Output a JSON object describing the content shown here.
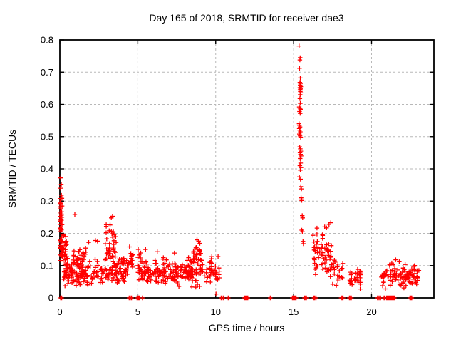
{
  "chart_data": {
    "type": "scatter",
    "title": "Day 165 of 2018, SRMTID for receiver dae3",
    "xlabel": "GPS time / hours",
    "ylabel": "SRMTID / TECUs",
    "xlim": [
      0,
      24
    ],
    "ylim": [
      0,
      0.8
    ],
    "grid": true,
    "legend_position": "none",
    "xticks": [
      {
        "value": 0,
        "label": "0"
      },
      {
        "value": 5,
        "label": "5"
      },
      {
        "value": 10,
        "label": "10"
      },
      {
        "value": 15,
        "label": "15"
      },
      {
        "value": 20,
        "label": "20"
      }
    ],
    "yticks": [
      {
        "value": 0,
        "label": "0"
      },
      {
        "value": 0.1,
        "label": "0.1"
      },
      {
        "value": 0.2,
        "label": "0.2"
      },
      {
        "value": 0.3,
        "label": "0.3"
      },
      {
        "value": 0.4,
        "label": "0.4"
      },
      {
        "value": 0.5,
        "label": "0.5"
      },
      {
        "value": 0.6,
        "label": "0.6"
      },
      {
        "value": 0.7,
        "label": "0.7"
      },
      {
        "value": 0.8,
        "label": "0.8"
      }
    ],
    "marker": {
      "shape": "plus",
      "half": 3.2,
      "stroke": 1.3
    },
    "colors": {
      "marker": "#ff0000",
      "grid": "#b8b8b8",
      "axis": "#000000",
      "background": "#ffffff",
      "text": "#000000"
    },
    "clusters": [
      {
        "name": "left-spike-core",
        "x": [
          0.0,
          0.14
        ],
        "y_mean": 0.24,
        "y_sd": 0.04,
        "y_clip": [
          0.16,
          0.32
        ],
        "n": 38
      },
      {
        "name": "left-spike-fan",
        "x": [
          0.02,
          0.5
        ],
        "y_mean": 0.15,
        "y_sd": 0.028,
        "y_clip": [
          0.095,
          0.21
        ],
        "n": 40
      },
      {
        "name": "band-0-4",
        "x": [
          0.25,
          4.35
        ],
        "y_mean": 0.08,
        "y_sd": 0.021,
        "y_clip": [
          0.035,
          0.14
        ],
        "n": 215
      },
      {
        "name": "bump-1h",
        "x": [
          0.85,
          1.75
        ],
        "y_mean": 0.125,
        "y_sd": 0.018,
        "y_clip": [
          0.1,
          0.163
        ],
        "n": 26
      },
      {
        "name": "column-3h",
        "x": [
          2.9,
          3.62
        ],
        "y_mean": 0.165,
        "y_sd": 0.038,
        "y_clip": [
          0.105,
          0.248
        ],
        "n": 38
      },
      {
        "name": "cluster-4.5h",
        "x": [
          4.33,
          4.72
        ],
        "y_mean": 0.11,
        "y_sd": 0.03,
        "y_clip": [
          0.05,
          0.15
        ],
        "n": 14
      },
      {
        "name": "band-5-10",
        "x": [
          4.98,
          10.28
        ],
        "y_mean": 0.078,
        "y_sd": 0.02,
        "y_clip": [
          0.03,
          0.132
        ],
        "n": 240
      },
      {
        "name": "bump-8.8h",
        "x": [
          8.55,
          9.1
        ],
        "y_mean": 0.132,
        "y_sd": 0.018,
        "y_clip": [
          0.108,
          0.175
        ],
        "n": 26
      },
      {
        "name": "column-5h",
        "x": [
          5.0,
          5.2
        ],
        "y_mean": 0.125,
        "y_sd": 0.02,
        "y_clip": [
          0.1,
          0.152
        ],
        "n": 7
      },
      {
        "name": "cluster-17h",
        "x": [
          16.27,
          17.45
        ],
        "y_mean": 0.13,
        "y_sd": 0.033,
        "y_clip": [
          0.07,
          0.225
        ],
        "n": 60
      },
      {
        "name": "tail-17.5-18h",
        "x": [
          17.35,
          18.2
        ],
        "y_mean": 0.07,
        "y_sd": 0.028,
        "y_clip": [
          0.03,
          0.135
        ],
        "n": 26
      },
      {
        "name": "cluster-19h",
        "x": [
          18.6,
          19.3
        ],
        "y_mean": 0.06,
        "y_sd": 0.02,
        "y_clip": [
          0.02,
          0.098
        ],
        "n": 32
      },
      {
        "name": "band-21-23h",
        "x": [
          20.62,
          23.05
        ],
        "y_mean": 0.067,
        "y_sd": 0.019,
        "y_clip": [
          0.027,
          0.112
        ],
        "n": 105
      }
    ],
    "points": [
      [
        0.05,
        0.372
      ],
      [
        0.09,
        0.352
      ],
      [
        0.04,
        0.34
      ],
      [
        0.1,
        0.318
      ],
      [
        0.06,
        0.308
      ],
      [
        0.96,
        0.259
      ],
      [
        1.85,
        0.172
      ],
      [
        2.28,
        0.178
      ],
      [
        2.42,
        0.176
      ],
      [
        3.38,
        0.253
      ],
      [
        3.3,
        0.248
      ],
      [
        4.47,
        0.158
      ],
      [
        5.5,
        0.15
      ],
      [
        6.25,
        0.143
      ],
      [
        7.35,
        0.139
      ],
      [
        9.75,
        0.128
      ],
      [
        8.8,
        0.18
      ],
      [
        8.9,
        0.176
      ],
      [
        10.02,
        0.012
      ],
      [
        16.24,
        0.194
      ],
      [
        16.5,
        0.198
      ],
      [
        17.11,
        0.217
      ],
      [
        17.27,
        0.228
      ],
      [
        17.38,
        0.233
      ],
      [
        21.3,
        0.108
      ],
      [
        21.55,
        0.118
      ],
      [
        21.78,
        0.112
      ],
      [
        15.35,
        0.781
      ],
      [
        15.42,
        0.745
      ],
      [
        15.4,
        0.738
      ],
      [
        15.38,
        0.712
      ],
      [
        15.43,
        0.682
      ],
      [
        15.4,
        0.668
      ],
      [
        15.44,
        0.665
      ],
      [
        15.42,
        0.66
      ],
      [
        15.46,
        0.655
      ],
      [
        15.4,
        0.652
      ],
      [
        15.44,
        0.648
      ],
      [
        15.41,
        0.645
      ],
      [
        15.43,
        0.64
      ],
      [
        15.45,
        0.636
      ],
      [
        15.42,
        0.63
      ],
      [
        15.4,
        0.618
      ],
      [
        15.43,
        0.603
      ],
      [
        15.36,
        0.592
      ],
      [
        15.4,
        0.588
      ],
      [
        15.44,
        0.585
      ],
      [
        15.38,
        0.578
      ],
      [
        15.42,
        0.572
      ],
      [
        15.35,
        0.54
      ],
      [
        15.38,
        0.535
      ],
      [
        15.41,
        0.53
      ],
      [
        15.36,
        0.525
      ],
      [
        15.39,
        0.52
      ],
      [
        15.43,
        0.515
      ],
      [
        15.37,
        0.508
      ],
      [
        15.41,
        0.502
      ],
      [
        15.45,
        0.498
      ],
      [
        15.39,
        0.468
      ],
      [
        15.43,
        0.462
      ],
      [
        15.46,
        0.455
      ],
      [
        15.41,
        0.45
      ],
      [
        15.44,
        0.445
      ],
      [
        15.48,
        0.44
      ],
      [
        15.42,
        0.432
      ],
      [
        15.45,
        0.418
      ],
      [
        15.4,
        0.41
      ],
      [
        15.47,
        0.404
      ],
      [
        15.43,
        0.396
      ],
      [
        15.37,
        0.375
      ],
      [
        15.44,
        0.368
      ],
      [
        15.46,
        0.345
      ],
      [
        15.5,
        0.338
      ],
      [
        15.48,
        0.31
      ],
      [
        15.52,
        0.302
      ],
      [
        15.55,
        0.255
      ],
      [
        15.58,
        0.248
      ],
      [
        15.52,
        0.21
      ],
      [
        15.56,
        0.205
      ],
      [
        15.6,
        0.175
      ],
      [
        15.63,
        0.168
      ]
    ],
    "zero_markers": [
      0.05,
      0.12,
      4.45,
      4.52,
      4.6,
      4.95,
      5.03,
      5.08,
      5.13,
      5.3,
      10.35,
      10.48,
      10.8,
      11.82,
      11.88,
      11.94,
      12.0,
      12.06,
      13.5,
      14.92,
      14.98,
      15.04,
      15.1,
      15.16,
      15.7,
      15.76,
      15.82,
      16.3,
      16.36,
      16.44,
      18.05,
      18.11,
      18.17,
      18.58,
      18.64,
      18.7,
      20.38,
      20.44,
      20.52,
      20.58,
      20.8,
      20.86,
      20.96,
      21.02,
      21.1,
      21.16,
      21.22,
      21.28,
      21.34,
      21.4,
      21.46,
      22.46,
      22.52,
      22.58
    ]
  }
}
